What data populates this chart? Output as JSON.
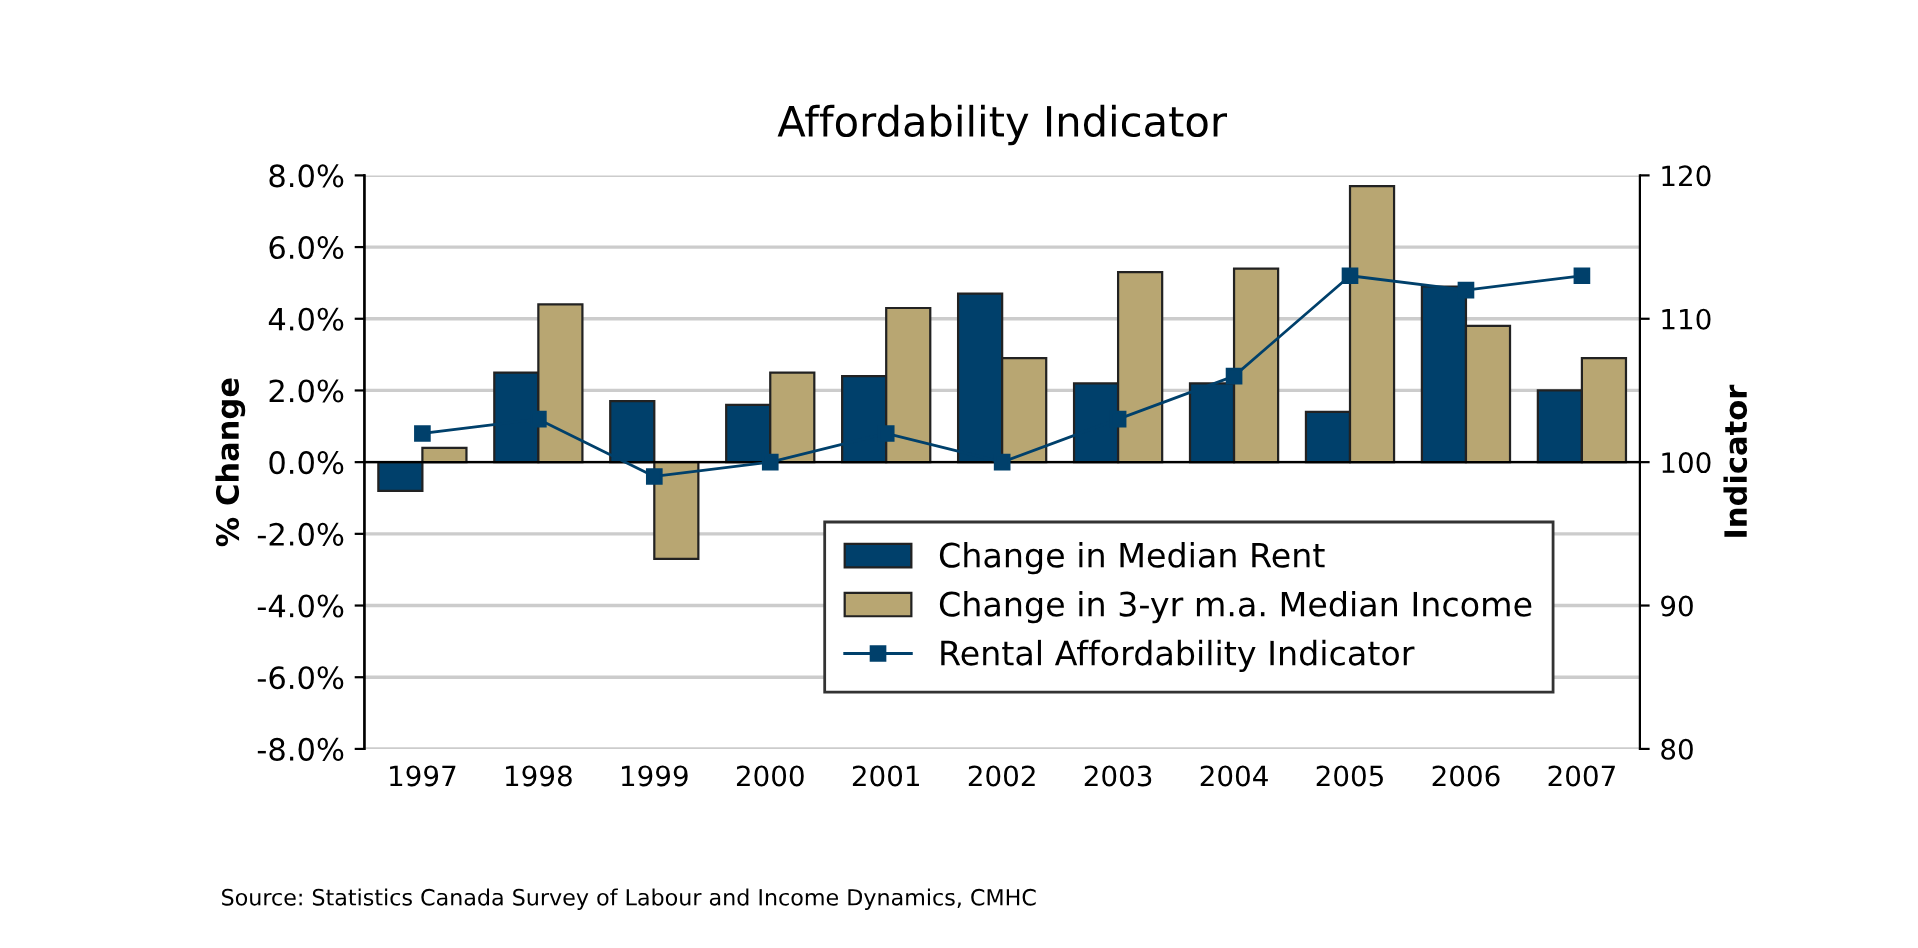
{
  "chart_data": {
    "type": "bar",
    "title": "Affordability Indicator",
    "categories": [
      "1997",
      "1998",
      "1999",
      "2000",
      "2001",
      "2002",
      "2003",
      "2004",
      "2005",
      "2006",
      "2007"
    ],
    "series": [
      {
        "name": "Change in Median Rent",
        "color": "#00406b",
        "values": [
          -0.8,
          2.5,
          1.7,
          1.6,
          2.4,
          4.7,
          2.2,
          2.2,
          1.4,
          4.9,
          2.0
        ]
      },
      {
        "name": "Change in 3-yr m.a. Median Income",
        "color": "#b8a672",
        "values": [
          0.4,
          4.4,
          -2.7,
          2.5,
          4.3,
          2.9,
          5.3,
          5.4,
          7.7,
          3.8,
          2.9
        ]
      },
      {
        "name": "Rental Affordability Indicator",
        "color": "#00406b",
        "type": "line",
        "axis": "y2",
        "marker": "square",
        "values": [
          102,
          103,
          99,
          100,
          102,
          100,
          103,
          106,
          113,
          112,
          113
        ]
      }
    ],
    "ylabel": "% Change",
    "y2label": "Indicator",
    "ylim": [
      -8,
      8
    ],
    "yticks": [
      {
        "value": -8,
        "label": "-8.0%"
      },
      {
        "value": -6,
        "label": "-6.0%"
      },
      {
        "value": -4,
        "label": "-4.0%"
      },
      {
        "value": -2,
        "label": "-2.0%"
      },
      {
        "value": 0,
        "label": "0.0%"
      },
      {
        "value": 2,
        "label": "2.0%"
      },
      {
        "value": 4,
        "label": "4.0%"
      },
      {
        "value": 6,
        "label": "6.0%"
      },
      {
        "value": 8,
        "label": "8.0%"
      }
    ],
    "y2lim": [
      80,
      120
    ],
    "y2ticks": [
      80,
      90,
      100,
      110,
      120
    ],
    "grid": "y",
    "legend": "bottom right",
    "annotations": [
      "Source: Statistics Canada Survey of Labour and Income Dynamics, CMHC"
    ]
  }
}
